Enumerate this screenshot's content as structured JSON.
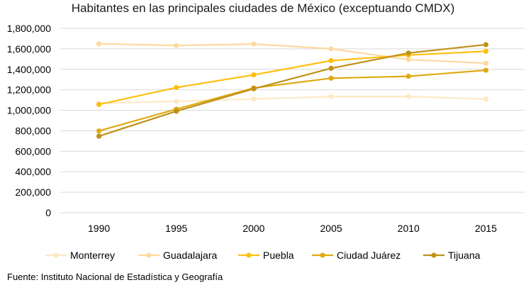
{
  "chart_data": {
    "type": "line",
    "title": "Habitantes en las principales ciudades de México (exceptuando CMDX)",
    "xlabel": "",
    "ylabel": "",
    "categories": [
      "1990",
      "1995",
      "2000",
      "2005",
      "2010",
      "2015"
    ],
    "y_ticks": [
      "0",
      "200,000",
      "400,000",
      "600,000",
      "800,000",
      "1,000,000",
      "1,200,000",
      "1,400,000",
      "1,600,000",
      "1,800,000"
    ],
    "ylim": [
      0,
      1800000
    ],
    "grid": true,
    "legend_position": "bottom",
    "series": [
      {
        "name": "Monterrey",
        "color": "#fde9c4",
        "values": [
          1069000,
          1088000,
          1110000,
          1134000,
          1135000,
          1109000
        ]
      },
      {
        "name": "Guadalajara",
        "color": "#fdd9a0",
        "values": [
          1650000,
          1633000,
          1647000,
          1600000,
          1495000,
          1460000
        ]
      },
      {
        "name": "Puebla",
        "color": "#fdc010",
        "values": [
          1057000,
          1222000,
          1346000,
          1485000,
          1539000,
          1576000
        ]
      },
      {
        "name": "Ciudad Juárez",
        "color": "#deaa12",
        "values": [
          798000,
          1011000,
          1218000,
          1313000,
          1332000,
          1391000
        ]
      },
      {
        "name": "Tijuana",
        "color": "#bf9118",
        "values": [
          747000,
          991000,
          1210000,
          1410000,
          1559000,
          1641000
        ]
      }
    ]
  },
  "source_note": "Fuente: Instituto Nacional de Estadística y Geografía"
}
